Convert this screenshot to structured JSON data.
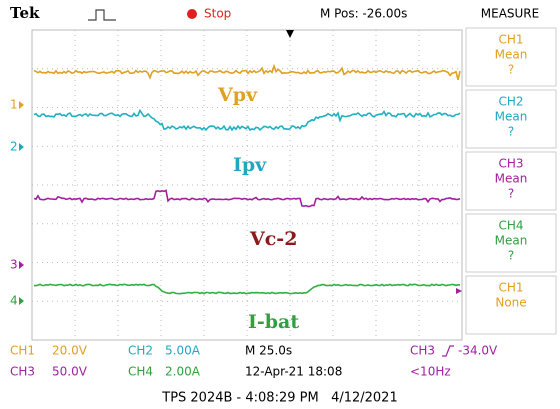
{
  "header": {
    "brand": "Tek",
    "status": "Stop",
    "position": "M Pos: -26.00s",
    "panel_title": "MEASURE"
  },
  "measure": [
    {
      "channel": "CH1",
      "stat": "Mean",
      "value": "?"
    },
    {
      "channel": "CH2",
      "stat": "Mean",
      "value": "?"
    },
    {
      "channel": "CH3",
      "stat": "Mean",
      "value": "?"
    },
    {
      "channel": "CH4",
      "stat": "Mean",
      "value": "?"
    },
    {
      "channel": "CH1",
      "stat": "None"
    }
  ],
  "channel_markers": [
    "1",
    "2",
    "3",
    "4"
  ],
  "traces": [
    "Vpv",
    "Ipv",
    "Vc-2",
    "I-bat"
  ],
  "settings": {
    "ch1": {
      "channel": "CH1",
      "scale": "20.0V"
    },
    "ch2": {
      "channel": "CH2",
      "scale": "5.00A"
    },
    "ch3": {
      "channel": "CH3",
      "scale": "50.0V"
    },
    "ch4": {
      "channel": "CH4",
      "scale": "2.00A"
    },
    "timebase": "M 25.0s",
    "date": "12-Apr-21 18:08",
    "trigger": {
      "channel": "CH3",
      "level": "-34.0V"
    },
    "frequency": "<10Hz"
  },
  "footer": "TPS 2024B - 4:08:29 PM   4/12/2021"
}
